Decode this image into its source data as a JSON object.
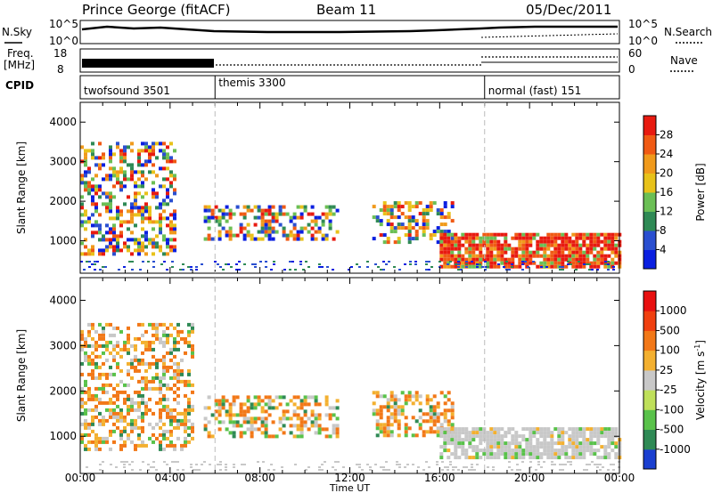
{
  "header": {
    "station": "Prince George (fitACF)",
    "beam": "Beam 11",
    "date": "05/Dec/2011"
  },
  "params": {
    "nsky_label": "N.Sky",
    "nsky_ticks": [
      "10^5",
      "10^0"
    ],
    "nsearch_label": "N.Search",
    "nsearch_ticks": [
      "10^5",
      "10^0"
    ],
    "freq_label": "Freq.",
    "freq_unit": "[MHz]",
    "freq_ticks": [
      "18",
      "8"
    ],
    "nave_label": "Nave",
    "nave_ticks": [
      "60",
      "0"
    ],
    "cpid_label": "CPID",
    "cpid_modes": [
      {
        "name": "twofsound 3501",
        "start_hour": 0
      },
      {
        "name": "themis 3300",
        "start_hour": 6
      },
      {
        "name": "normal (fast) 151",
        "start_hour": 18
      }
    ]
  },
  "chart_data": [
    {
      "type": "heatmap",
      "panel": "power",
      "ylabel": "Slant Range [km]",
      "xlabel": "",
      "x_range_hours": [
        0,
        24
      ],
      "ylim": [
        180,
        4500
      ],
      "y_ticks": [
        "1000",
        "2000",
        "3000",
        "4000"
      ],
      "colorbar": {
        "label": "Power [dB]",
        "ticks": [
          "4",
          "8",
          "12",
          "16",
          "20",
          "24",
          "28"
        ],
        "colors": [
          "#0a1fe0",
          "#2a4fd0",
          "#2f8a55",
          "#6bbf55",
          "#e8c21a",
          "#f09a1c",
          "#f05a14",
          "#e81a10"
        ]
      },
      "regions": [
        {
          "t": [
            0.0,
            4.2
          ],
          "r": [
            700,
            3500
          ],
          "level": "mixed"
        },
        {
          "t": [
            5.5,
            11.5
          ],
          "r": [
            1000,
            1900
          ],
          "level": "mixed"
        },
        {
          "t": [
            13.0,
            16.5
          ],
          "r": [
            1000,
            2000
          ],
          "level": "mixed"
        },
        {
          "t": [
            16.0,
            24.0
          ],
          "r": [
            300,
            1200
          ],
          "level": "high"
        }
      ]
    },
    {
      "type": "heatmap",
      "panel": "velocity",
      "ylabel": "Slant Range [km]",
      "xlabel": "Time UT",
      "x_range_hours": [
        0,
        24
      ],
      "ylim": [
        180,
        4500
      ],
      "y_ticks": [
        "1000",
        "2000",
        "3000",
        "4000"
      ],
      "x_ticks": [
        "00:00",
        "04:00",
        "08:00",
        "12:00",
        "16:00",
        "20:00",
        "00:00"
      ],
      "colorbar": {
        "label": "Velocity [m s",
        "label_sup": "-1",
        "label_end": "]",
        "ticks": [
          "1000",
          "500",
          "100",
          "25",
          "-25",
          "-100",
          "-500",
          "-1000"
        ],
        "colors": [
          "#1a3fd0",
          "#2f8a55",
          "#59c24a",
          "#bfe05a",
          "#c8c8c8",
          "#f3b030",
          "#f27818",
          "#f04010",
          "#e81010"
        ]
      },
      "regions": [
        {
          "t": [
            0.0,
            5.0
          ],
          "r": [
            700,
            3500
          ],
          "level": "mixed"
        },
        {
          "t": [
            5.5,
            11.5
          ],
          "r": [
            1000,
            1900
          ],
          "level": "mixed"
        },
        {
          "t": [
            13.0,
            16.5
          ],
          "r": [
            1000,
            2000
          ],
          "level": "mixed"
        },
        {
          "t": [
            16.0,
            24.0
          ],
          "r": [
            500,
            1200
          ],
          "level": "gray"
        }
      ]
    }
  ]
}
